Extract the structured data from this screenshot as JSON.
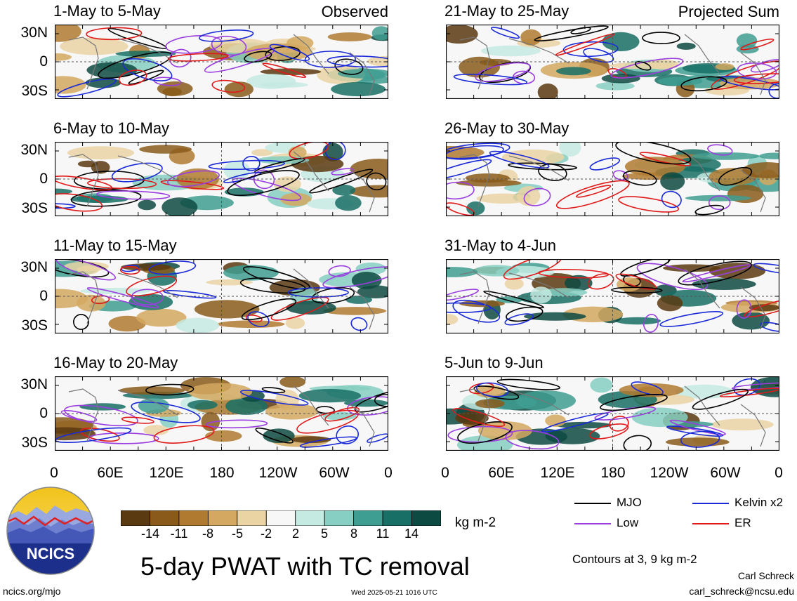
{
  "panels": {
    "left": [
      {
        "title": "1-May to 5-May",
        "corner": "Observed"
      },
      {
        "title": "6-May to 10-May",
        "corner": ""
      },
      {
        "title": "11-May to 15-May",
        "corner": ""
      },
      {
        "title": "16-May to 20-May",
        "corner": ""
      }
    ],
    "right": [
      {
        "title": "21-May to 25-May",
        "corner": "Projected Sum"
      },
      {
        "title": "26-May to 30-May",
        "corner": ""
      },
      {
        "title": "31-May to 4-Jun",
        "corner": ""
      },
      {
        "title": "5-Jun to 9-Jun",
        "corner": ""
      }
    ]
  },
  "axes": {
    "lat_labels": [
      "30N",
      "0",
      "30S"
    ],
    "lon_labels": [
      "0",
      "60E",
      "120E",
      "180",
      "120W",
      "60W",
      "0"
    ]
  },
  "colorbar": {
    "labels": [
      "-14",
      "-11",
      "-8",
      "-5",
      "-2",
      "2",
      "5",
      "8",
      "11",
      "14"
    ],
    "colors": [
      "#5a3a10",
      "#8a5a1a",
      "#b07a30",
      "#d4a860",
      "#ead4a4",
      "#f7f7f7",
      "#c4eae2",
      "#86cfc2",
      "#3f9e92",
      "#176f65",
      "#0d4a42"
    ],
    "unit": "kg m-2"
  },
  "legend": {
    "items": [
      {
        "label": "MJO",
        "color": "#000000"
      },
      {
        "label": "Kelvin x2",
        "color": "#1a2ad8"
      },
      {
        "label": "Low",
        "color": "#9a3ee0"
      },
      {
        "label": "ER",
        "color": "#e01a1a"
      }
    ],
    "contours_note": "Contours at 3, 9 kg m-2"
  },
  "title": "5-day PWAT with TC removal",
  "logo_text": "NCICS",
  "footer": {
    "url": "ncics.org/mjo",
    "timestamp": "Wed 2025-05-21 1016 UTC",
    "author": "Carl Schreck",
    "email": "carl_schreck@ncsu.edu"
  }
}
